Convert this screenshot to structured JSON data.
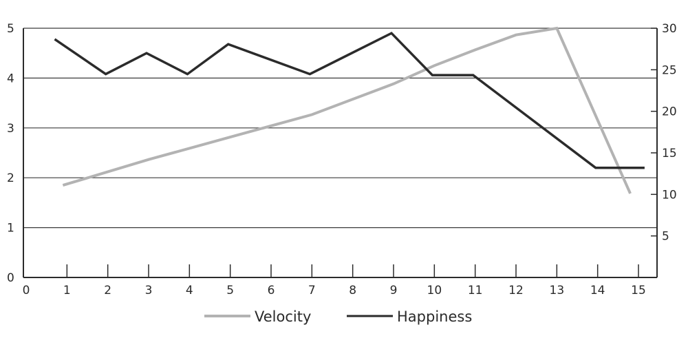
{
  "chart_data": {
    "type": "line",
    "x": [
      1,
      2,
      3,
      4,
      5,
      6,
      7,
      8,
      9,
      10,
      11,
      12,
      13,
      14,
      15
    ],
    "xlim": [
      0,
      15
    ],
    "x_ticks": [
      "0",
      "1",
      "2",
      "3",
      "4",
      "5",
      "6",
      "7",
      "8",
      "9",
      "10",
      "11",
      "12",
      "13",
      "14",
      "15"
    ],
    "y_left": {
      "ylim": [
        0,
        5
      ],
      "ticks": [
        "0",
        "1",
        "2",
        "3",
        "4",
        "5"
      ]
    },
    "y_right": {
      "ylim": [
        0,
        30
      ],
      "ticks": [
        "5",
        "10",
        "15",
        "20",
        "25",
        "30"
      ]
    },
    "grid": true,
    "legend_position": "bottom",
    "series": [
      {
        "name": "Velocity",
        "axis": "right",
        "color": "#b3b3b3",
        "points": [
          [
            0.9,
            11.1
          ],
          [
            3,
            14.2
          ],
          [
            5,
            16.9
          ],
          [
            7,
            19.6
          ],
          [
            9,
            23.3
          ],
          [
            10,
            25.5
          ],
          [
            11,
            27.4
          ],
          [
            12,
            29.2
          ],
          [
            13,
            30.0
          ],
          [
            14.8,
            10.1
          ]
        ]
      },
      {
        "name": "Happiness",
        "axis": "left",
        "color": "#2b2b2b",
        "points": [
          [
            0.7,
            4.78
          ],
          [
            1.95,
            4.08
          ],
          [
            2.95,
            4.5
          ],
          [
            3.95,
            4.08
          ],
          [
            4.95,
            4.68
          ],
          [
            6.95,
            4.08
          ],
          [
            8.95,
            4.9
          ],
          [
            9.95,
            4.06
          ],
          [
            10.95,
            4.06
          ],
          [
            13.95,
            2.2
          ],
          [
            15.15,
            2.2
          ]
        ]
      }
    ]
  }
}
